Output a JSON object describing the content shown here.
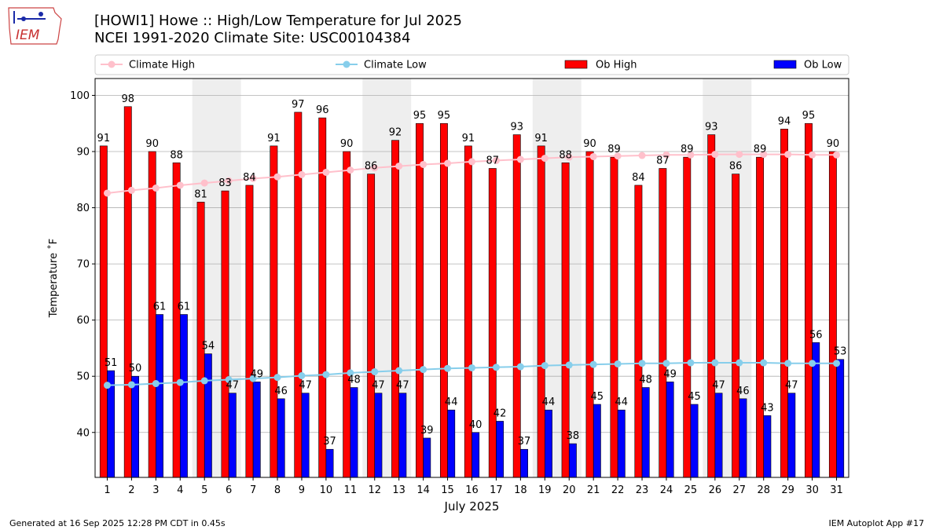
{
  "header": {
    "title_line1": "[HOWI1] Howe :: High/Low Temperature for Jul 2025",
    "title_line2": "NCEI 1991-2020 Climate Site: USC00104384"
  },
  "logo": {
    "text": "IEM"
  },
  "footer": {
    "generated": "Generated at 16 Sep 2025 12:28 PM CDT in 0.45s",
    "app": "IEM Autoplot App #17"
  },
  "colors": {
    "ob_high": "#ff0000",
    "ob_low": "#0000ff",
    "climate_high": "#ffc0cb",
    "climate_low": "#87ceeb",
    "weekend_shade": "#eeeeee",
    "grid": "#b0b0b0"
  },
  "chart_data": {
    "type": "bar",
    "xlabel": "July 2025",
    "ylabel": "Temperature ˚F",
    "ylim": [
      32,
      103
    ],
    "yticks": [
      40,
      50,
      60,
      70,
      80,
      90,
      100
    ],
    "grid": "horizontal",
    "legend_position": "top",
    "categories": [
      "1",
      "2",
      "3",
      "4",
      "5",
      "6",
      "7",
      "8",
      "9",
      "10",
      "11",
      "12",
      "13",
      "14",
      "15",
      "16",
      "17",
      "18",
      "19",
      "20",
      "21",
      "22",
      "23",
      "24",
      "25",
      "26",
      "27",
      "28",
      "29",
      "30",
      "31"
    ],
    "shaded_day_ranges": [
      [
        5,
        6
      ],
      [
        12,
        13
      ],
      [
        19,
        20
      ],
      [
        26,
        27
      ]
    ],
    "series": [
      {
        "name": "Ob High",
        "kind": "bar",
        "values": [
          91,
          98,
          90,
          88,
          81,
          83,
          84,
          91,
          97,
          96,
          90,
          86,
          92,
          95,
          95,
          91,
          87,
          93,
          91,
          88,
          90,
          89,
          84,
          87,
          89,
          93,
          86,
          89,
          94,
          95,
          90
        ]
      },
      {
        "name": "Ob Low",
        "kind": "bar",
        "values": [
          51,
          50,
          61,
          61,
          54,
          47,
          49,
          46,
          47,
          37,
          48,
          47,
          47,
          39,
          44,
          40,
          42,
          37,
          44,
          38,
          45,
          44,
          48,
          49,
          45,
          47,
          46,
          43,
          47,
          56,
          53
        ]
      },
      {
        "name": "Climate High",
        "kind": "line",
        "values": [
          82.6,
          83.1,
          83.5,
          84.0,
          84.4,
          84.8,
          85.2,
          85.5,
          85.9,
          86.3,
          86.7,
          87.1,
          87.4,
          87.7,
          87.9,
          88.2,
          88.4,
          88.6,
          88.8,
          89.0,
          89.1,
          89.2,
          89.3,
          89.4,
          89.4,
          89.5,
          89.5,
          89.5,
          89.5,
          89.4,
          89.4
        ]
      },
      {
        "name": "Climate Low",
        "kind": "line",
        "values": [
          48.4,
          48.5,
          48.7,
          48.9,
          49.2,
          49.4,
          49.6,
          49.8,
          50.1,
          50.3,
          50.6,
          50.8,
          51.0,
          51.2,
          51.4,
          51.5,
          51.6,
          51.7,
          51.9,
          52.0,
          52.1,
          52.2,
          52.3,
          52.3,
          52.4,
          52.4,
          52.4,
          52.4,
          52.3,
          52.3,
          52.3
        ]
      }
    ]
  }
}
